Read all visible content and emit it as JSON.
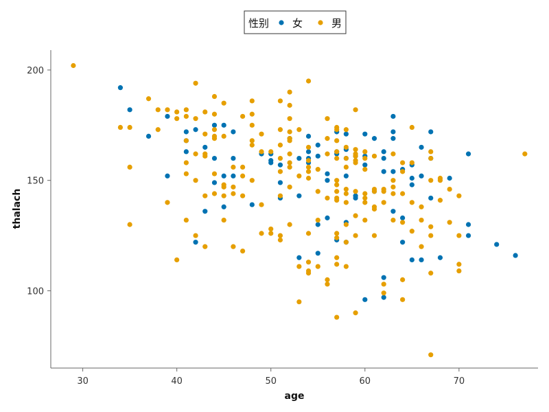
{
  "chart_data": {
    "type": "scatter",
    "title": "",
    "xlabel": "age",
    "ylabel": "thalach",
    "xlim": [
      26.6,
      78.4
    ],
    "ylim": [
      65,
      209
    ],
    "xticks": [
      30,
      40,
      50,
      60,
      70
    ],
    "yticks": [
      100,
      150,
      200
    ],
    "grid": false,
    "legend": {
      "title": "性别",
      "placement": "top-center"
    },
    "series": [
      {
        "name": "女",
        "color": "#0072B2",
        "points": [
          [
            34,
            192
          ],
          [
            35,
            182
          ],
          [
            37,
            170
          ],
          [
            39,
            179
          ],
          [
            39,
            152
          ],
          [
            41,
            172
          ],
          [
            41,
            168
          ],
          [
            41,
            163
          ],
          [
            42,
            173
          ],
          [
            42,
            122
          ],
          [
            43,
            165
          ],
          [
            43,
            136
          ],
          [
            44,
            175
          ],
          [
            44,
            160
          ],
          [
            44,
            149
          ],
          [
            45,
            175
          ],
          [
            45,
            152
          ],
          [
            45,
            138
          ],
          [
            46,
            172
          ],
          [
            46,
            160
          ],
          [
            46,
            152
          ],
          [
            48,
            139
          ],
          [
            49,
            162
          ],
          [
            50,
            162
          ],
          [
            50,
            159
          ],
          [
            50,
            158
          ],
          [
            51,
            157
          ],
          [
            51,
            149
          ],
          [
            51,
            142
          ],
          [
            52,
            169
          ],
          [
            53,
            160
          ],
          [
            53,
            143
          ],
          [
            53,
            115
          ],
          [
            54,
            170
          ],
          [
            54,
            163
          ],
          [
            54,
            160
          ],
          [
            54,
            158
          ],
          [
            55,
            166
          ],
          [
            55,
            161
          ],
          [
            55,
            130
          ],
          [
            55,
            117
          ],
          [
            56,
            153
          ],
          [
            56,
            150
          ],
          [
            56,
            133
          ],
          [
            57,
            172
          ],
          [
            57,
            163
          ],
          [
            57,
            162
          ],
          [
            57,
            123
          ],
          [
            58,
            171
          ],
          [
            58,
            164
          ],
          [
            58,
            160
          ],
          [
            58,
            152
          ],
          [
            58,
            131
          ],
          [
            58,
            122
          ],
          [
            59,
            161
          ],
          [
            59,
            143
          ],
          [
            59,
            142
          ],
          [
            60,
            171
          ],
          [
            60,
            161
          ],
          [
            60,
            157
          ],
          [
            60,
            96
          ],
          [
            61,
            169
          ],
          [
            61,
            145
          ],
          [
            62,
            163
          ],
          [
            62,
            160
          ],
          [
            62,
            154
          ],
          [
            62,
            106
          ],
          [
            62,
            97
          ],
          [
            63,
            179
          ],
          [
            63,
            172
          ],
          [
            63,
            169
          ],
          [
            63,
            154
          ],
          [
            63,
            136
          ],
          [
            64,
            155
          ],
          [
            64,
            133
          ],
          [
            64,
            122
          ],
          [
            65,
            157
          ],
          [
            65,
            151
          ],
          [
            65,
            148
          ],
          [
            65,
            114
          ],
          [
            66,
            165
          ],
          [
            66,
            152
          ],
          [
            66,
            114
          ],
          [
            67,
            172
          ],
          [
            67,
            160
          ],
          [
            67,
            142
          ],
          [
            68,
            115
          ],
          [
            69,
            151
          ],
          [
            71,
            162
          ],
          [
            71,
            130
          ],
          [
            71,
            125
          ],
          [
            74,
            121
          ],
          [
            76,
            116
          ]
        ]
      },
      {
        "name": "男",
        "color": "#E69F00",
        "points": [
          [
            29,
            202
          ],
          [
            34,
            174
          ],
          [
            35,
            174
          ],
          [
            35,
            156
          ],
          [
            35,
            130
          ],
          [
            37,
            187
          ],
          [
            38,
            182
          ],
          [
            38,
            173
          ],
          [
            39,
            182
          ],
          [
            39,
            140
          ],
          [
            40,
            181
          ],
          [
            40,
            178
          ],
          [
            40,
            114
          ],
          [
            41,
            182
          ],
          [
            41,
            179
          ],
          [
            41,
            168
          ],
          [
            41,
            158
          ],
          [
            41,
            153
          ],
          [
            41,
            132
          ],
          [
            42,
            194
          ],
          [
            42,
            178
          ],
          [
            42,
            162
          ],
          [
            42,
            150
          ],
          [
            42,
            125
          ],
          [
            43,
            181
          ],
          [
            43,
            171
          ],
          [
            43,
            162
          ],
          [
            43,
            161
          ],
          [
            43,
            143
          ],
          [
            43,
            120
          ],
          [
            44,
            188
          ],
          [
            44,
            180
          ],
          [
            44,
            173
          ],
          [
            44,
            170
          ],
          [
            44,
            169
          ],
          [
            44,
            153
          ],
          [
            44,
            144
          ],
          [
            45,
            185
          ],
          [
            45,
            170
          ],
          [
            45,
            148
          ],
          [
            45,
            147
          ],
          [
            45,
            143
          ],
          [
            45,
            132
          ],
          [
            46,
            156
          ],
          [
            46,
            147
          ],
          [
            46,
            144
          ],
          [
            46,
            120
          ],
          [
            47,
            179
          ],
          [
            47,
            156
          ],
          [
            47,
            152
          ],
          [
            47,
            143
          ],
          [
            47,
            118
          ],
          [
            48,
            186
          ],
          [
            48,
            180
          ],
          [
            48,
            175
          ],
          [
            48,
            168
          ],
          [
            48,
            166
          ],
          [
            48,
            150
          ],
          [
            49,
            171
          ],
          [
            49,
            163
          ],
          [
            49,
            139
          ],
          [
            49,
            126
          ],
          [
            50,
            163
          ],
          [
            50,
            128
          ],
          [
            50,
            126
          ],
          [
            51,
            186
          ],
          [
            51,
            173
          ],
          [
            51,
            166
          ],
          [
            51,
            160
          ],
          [
            51,
            154
          ],
          [
            51,
            143
          ],
          [
            51,
            125
          ],
          [
            51,
            123
          ],
          [
            52,
            190
          ],
          [
            52,
            184
          ],
          [
            52,
            178
          ],
          [
            52,
            172
          ],
          [
            52,
            169
          ],
          [
            52,
            168
          ],
          [
            52,
            162
          ],
          [
            52,
            158
          ],
          [
            52,
            156
          ],
          [
            52,
            147
          ],
          [
            52,
            130
          ],
          [
            53,
            173
          ],
          [
            53,
            152
          ],
          [
            53,
            111
          ],
          [
            53,
            95
          ],
          [
            54,
            195
          ],
          [
            54,
            165
          ],
          [
            54,
            159
          ],
          [
            54,
            156
          ],
          [
            54,
            154
          ],
          [
            54,
            151
          ],
          [
            54,
            126
          ],
          [
            54,
            113
          ],
          [
            54,
            109
          ],
          [
            54,
            108
          ],
          [
            55,
            155
          ],
          [
            55,
            145
          ],
          [
            55,
            132
          ],
          [
            55,
            111
          ],
          [
            56,
            178
          ],
          [
            56,
            169
          ],
          [
            56,
            162
          ],
          [
            56,
            142
          ],
          [
            56,
            105
          ],
          [
            56,
            103
          ],
          [
            57,
            174
          ],
          [
            57,
            173
          ],
          [
            57,
            168
          ],
          [
            57,
            163
          ],
          [
            57,
            160
          ],
          [
            57,
            150
          ],
          [
            57,
            148
          ],
          [
            57,
            145
          ],
          [
            57,
            142
          ],
          [
            57,
            141
          ],
          [
            57,
            126
          ],
          [
            57,
            124
          ],
          [
            57,
            115
          ],
          [
            57,
            112
          ],
          [
            57,
            88
          ],
          [
            58,
            173
          ],
          [
            58,
            165
          ],
          [
            58,
            160
          ],
          [
            58,
            156
          ],
          [
            58,
            146
          ],
          [
            58,
            144
          ],
          [
            58,
            140
          ],
          [
            58,
            130
          ],
          [
            58,
            122
          ],
          [
            58,
            111
          ],
          [
            59,
            182
          ],
          [
            59,
            164
          ],
          [
            59,
            162
          ],
          [
            59,
            161
          ],
          [
            59,
            159
          ],
          [
            59,
            158
          ],
          [
            59,
            145
          ],
          [
            59,
            134
          ],
          [
            59,
            125
          ],
          [
            59,
            90
          ],
          [
            60,
            163
          ],
          [
            60,
            160
          ],
          [
            60,
            155
          ],
          [
            60,
            144
          ],
          [
            60,
            142
          ],
          [
            60,
            140
          ],
          [
            60,
            132
          ],
          [
            61,
            161
          ],
          [
            61,
            146
          ],
          [
            61,
            145
          ],
          [
            61,
            138
          ],
          [
            61,
            137
          ],
          [
            61,
            125
          ],
          [
            62,
            146
          ],
          [
            62,
            145
          ],
          [
            62,
            140
          ],
          [
            62,
            103
          ],
          [
            62,
            99
          ],
          [
            63,
            162
          ],
          [
            63,
            150
          ],
          [
            63,
            147
          ],
          [
            63,
            144
          ],
          [
            63,
            132
          ],
          [
            64,
            158
          ],
          [
            64,
            154
          ],
          [
            64,
            144
          ],
          [
            64,
            131
          ],
          [
            64,
            105
          ],
          [
            64,
            96
          ],
          [
            65,
            174
          ],
          [
            65,
            158
          ],
          [
            65,
            140
          ],
          [
            65,
            127
          ],
          [
            66,
            138
          ],
          [
            66,
            132
          ],
          [
            66,
            120
          ],
          [
            67,
            163
          ],
          [
            67,
            160
          ],
          [
            67,
            150
          ],
          [
            67,
            129
          ],
          [
            67,
            125
          ],
          [
            67,
            108
          ],
          [
            67,
            71
          ],
          [
            68,
            151
          ],
          [
            68,
            150
          ],
          [
            68,
            141
          ],
          [
            69,
            146
          ],
          [
            69,
            131
          ],
          [
            70,
            143
          ],
          [
            70,
            125
          ],
          [
            70,
            112
          ],
          [
            70,
            109
          ],
          [
            77,
            162
          ]
        ]
      }
    ]
  }
}
